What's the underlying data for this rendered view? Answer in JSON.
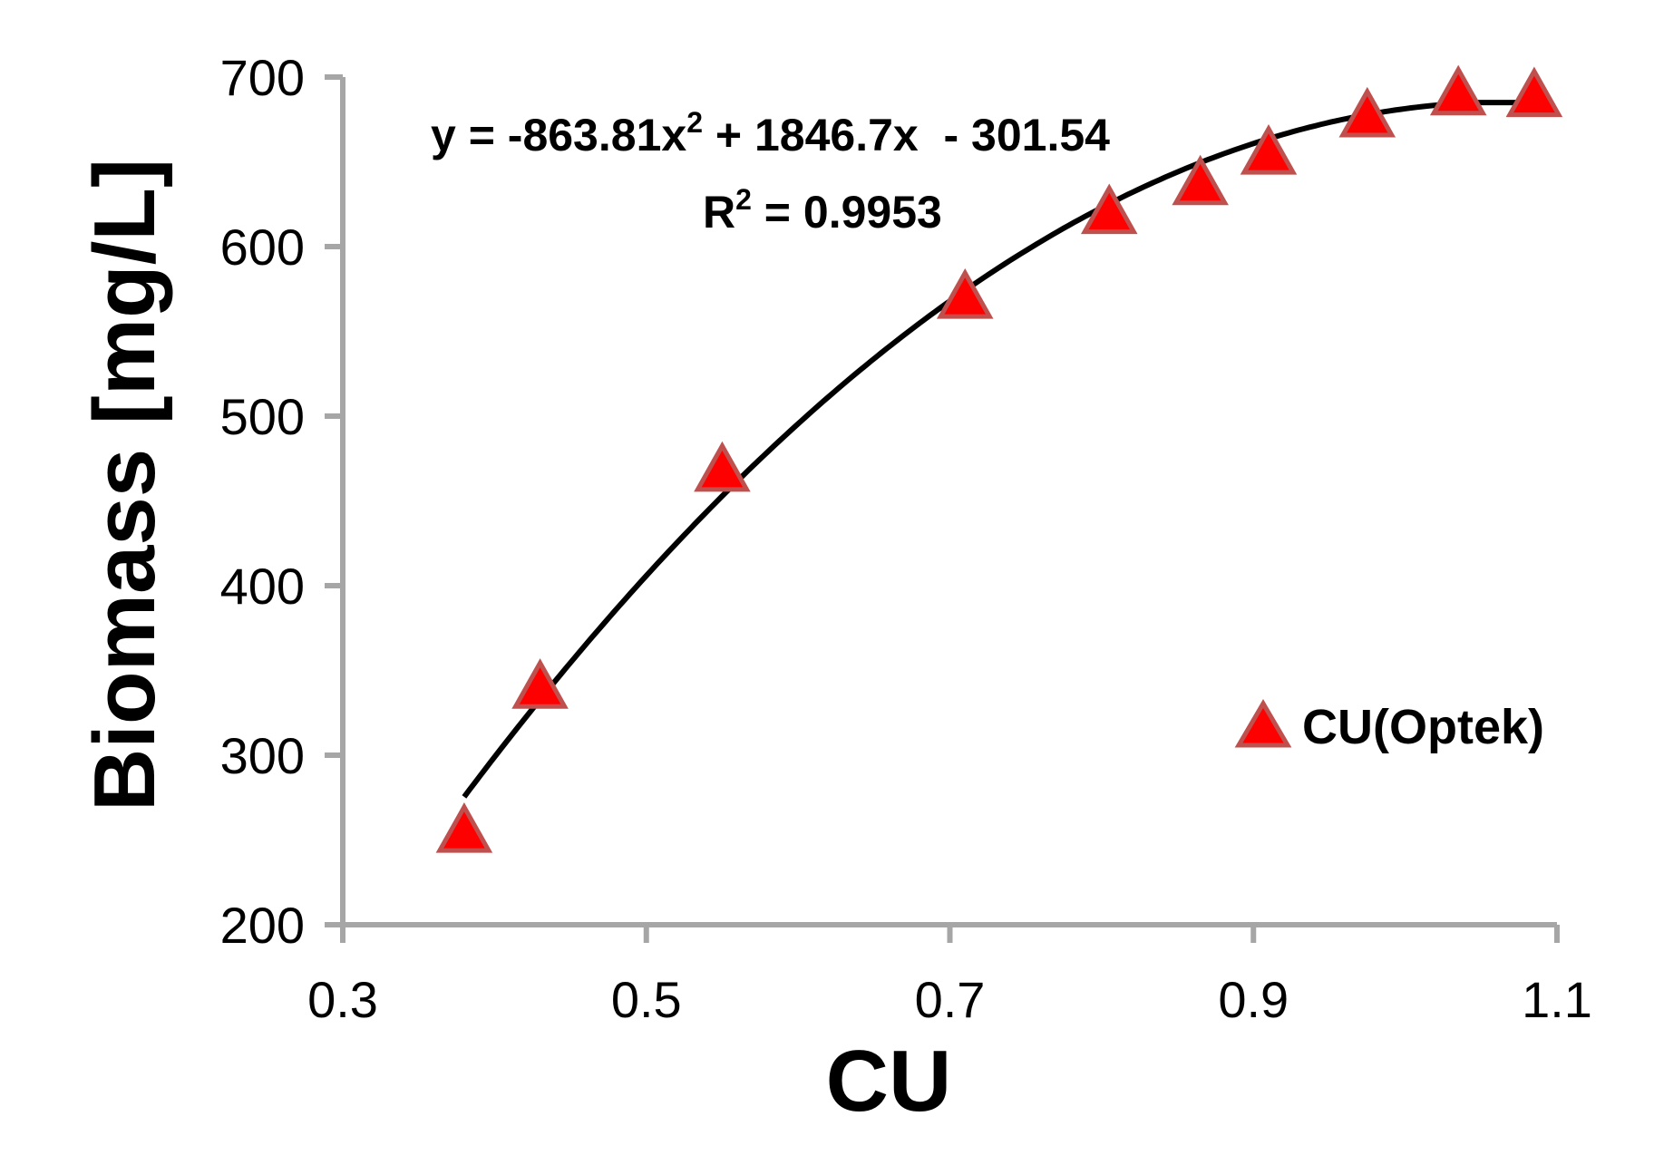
{
  "chart_data": {
    "type": "scatter",
    "xlabel": "CU",
    "ylabel": "Biomass [mg/L]",
    "xlim": [
      0.3,
      1.1
    ],
    "ylim": [
      200,
      700
    ],
    "xticks": [
      "0.3",
      "0.5",
      "0.7",
      "0.9",
      "1.1"
    ],
    "yticks": [
      "200",
      "300",
      "400",
      "500",
      "600",
      "700"
    ],
    "grid": false,
    "legend_position": "right",
    "series": [
      {
        "name": "CU(Optek)",
        "marker": "triangle",
        "color": "#ff0000",
        "edge_color": "#c0504d",
        "x": [
          0.38,
          0.43,
          0.55,
          0.71,
          0.805,
          0.865,
          0.91,
          0.975,
          1.035,
          1.085
        ],
        "y": [
          255,
          340,
          468,
          570,
          620,
          637,
          655,
          677,
          690,
          689
        ]
      }
    ],
    "trendline": {
      "type": "polynomial",
      "color": "#000000",
      "coefficients": [
        -863.81,
        1846.7,
        -301.54
      ],
      "x_range": [
        0.38,
        1.085
      ],
      "max_value": 685,
      "equation_prefix": "y = -863.81x",
      "equation_exp": "2",
      "equation_suffix": " + 1846.7x  - 301.54",
      "r2_prefix": "R",
      "r2_exp": "2",
      "r2_suffix": " = 0.9953"
    }
  }
}
